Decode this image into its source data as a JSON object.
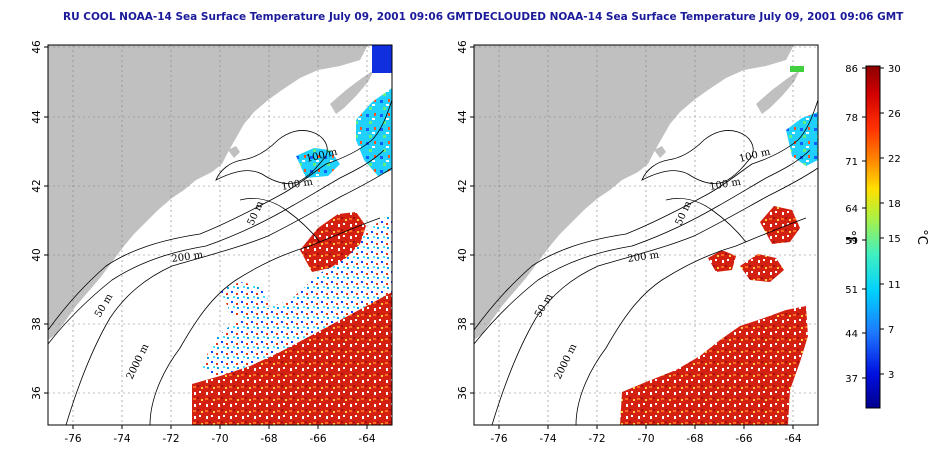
{
  "panels": {
    "left": {
      "title": "RU COOL NOAA-14 Sea Surface Temperature July 09, 2001 09:06 GMT"
    },
    "right": {
      "title": "DECLOUDED NOAA-14 Sea Surface Temperature July 09, 2001 09:06 GMT"
    }
  },
  "axes": {
    "x_ticks": [
      "-76",
      "-74",
      "-72",
      "-70",
      "-68",
      "-66",
      "-64"
    ],
    "y_ticks": [
      "46",
      "44",
      "42",
      "40",
      "38",
      "36"
    ]
  },
  "contour_labels": {
    "m100a": "100 m",
    "m100b": "100 m",
    "m50a": "50 m",
    "m200": "200 m",
    "m50b": "50 m",
    "m2000": "2000 m"
  },
  "colorbar": {
    "fahrenheit_ticks": [
      "86",
      "78",
      "71",
      "64",
      "59",
      "51",
      "44",
      "37"
    ],
    "celsius_ticks": [
      "30",
      "26",
      "22",
      "18",
      "15",
      "11",
      "7",
      "3"
    ],
    "fahrenheit_unit": "°F",
    "celsius_unit": "°C"
  },
  "colors": {
    "land": "#c0c0c0",
    "ocean": "#ffffff",
    "warm": "#d42010",
    "title": "#1a1a9a"
  }
}
